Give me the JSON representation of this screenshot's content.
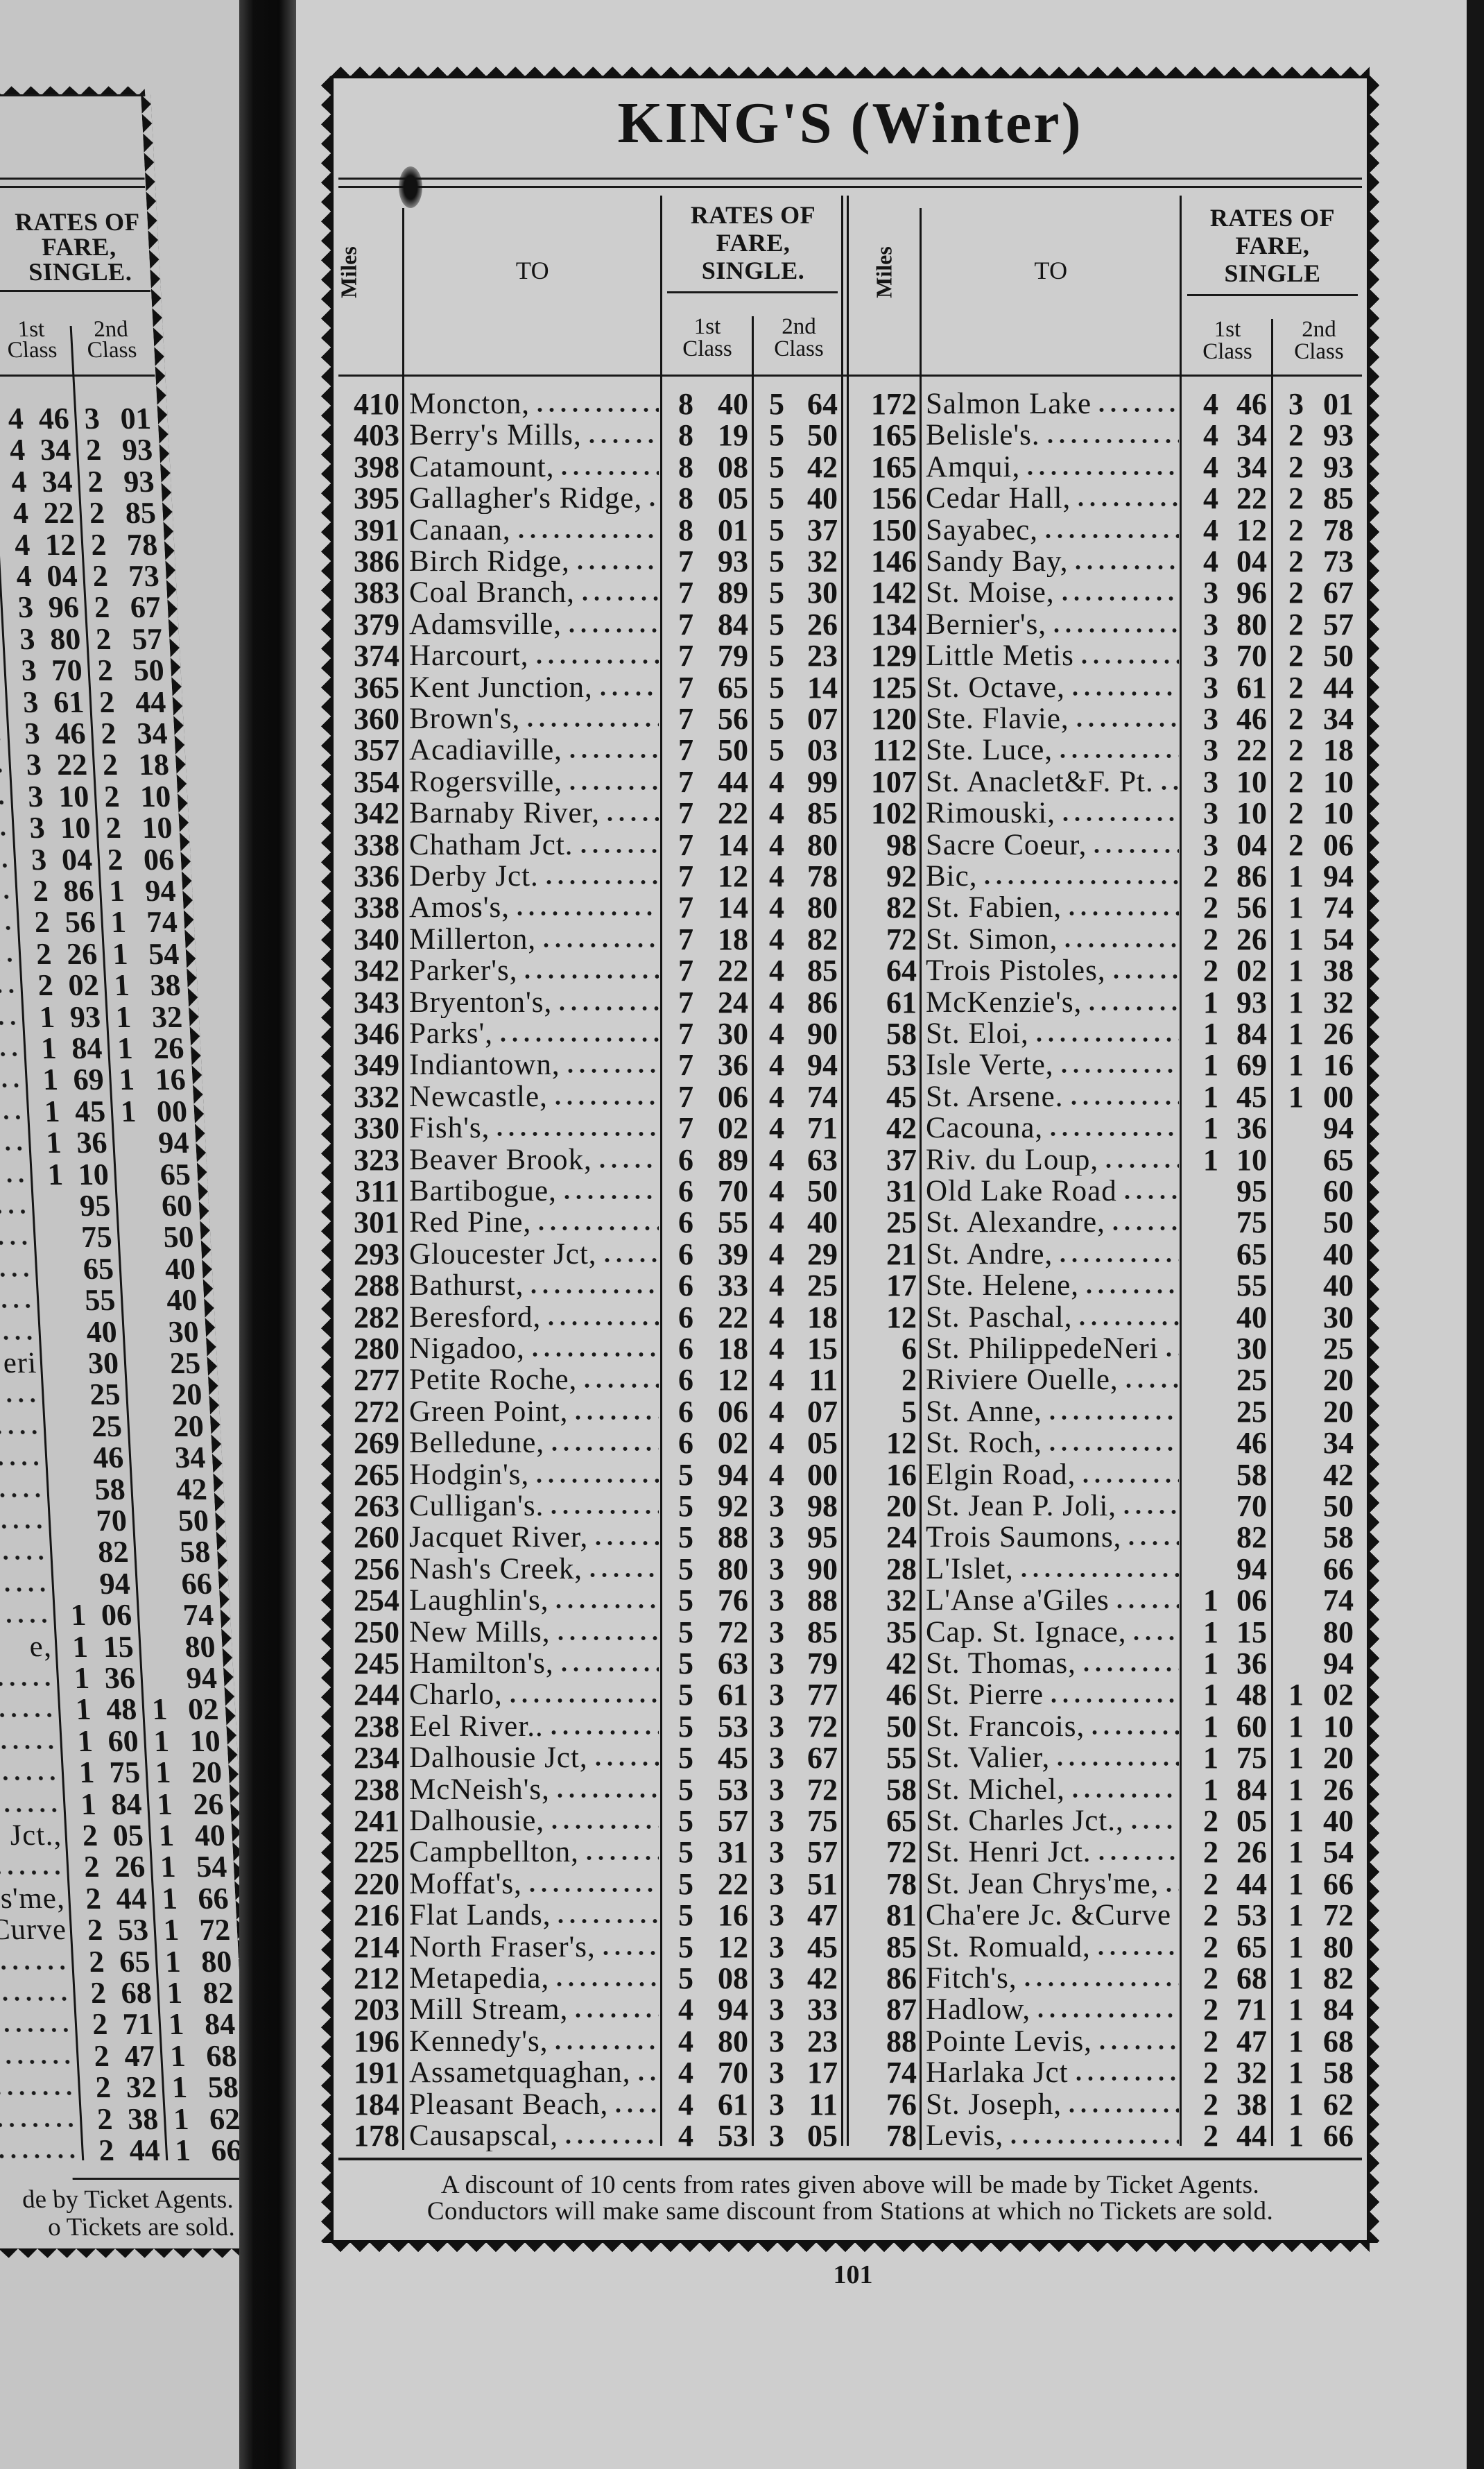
{
  "title": "KING'S (Winter)",
  "headers": {
    "left": {
      "miles": "Miles",
      "to": "TO",
      "rates": [
        "RATES OF",
        "FARE,",
        "SINGLE."
      ],
      "first": [
        "1st",
        "Class"
      ],
      "second": [
        "2nd",
        "Class"
      ]
    },
    "right": {
      "miles": "Miles",
      "to": "TO",
      "rates": [
        "RATES OF",
        "FARE,",
        "SINGLE"
      ],
      "first": [
        "1st",
        "Class"
      ],
      "second": [
        "2nd",
        "Class"
      ]
    }
  },
  "left_table": [
    [
      "410",
      "Moncton,",
      "8",
      "40",
      "5",
      "64"
    ],
    [
      "403",
      "Berry's Mills,",
      "8",
      "19",
      "5",
      "50"
    ],
    [
      "398",
      "Catamount,",
      "8",
      "08",
      "5",
      "42"
    ],
    [
      "395",
      "Gallagher's Ridge,",
      "8",
      "05",
      "5",
      "40"
    ],
    [
      "391",
      "Canaan,",
      "8",
      "01",
      "5",
      "37"
    ],
    [
      "386",
      "Birch Ridge,",
      "7",
      "93",
      "5",
      "32"
    ],
    [
      "383",
      "Coal Branch,",
      "7",
      "89",
      "5",
      "30"
    ],
    [
      "379",
      "Adamsville,",
      "7",
      "84",
      "5",
      "26"
    ],
    [
      "374",
      "Harcourt,",
      "7",
      "79",
      "5",
      "23"
    ],
    [
      "365",
      "Kent Junction,",
      "7",
      "65",
      "5",
      "14"
    ],
    [
      "360",
      "Brown's,",
      "7",
      "56",
      "5",
      "07"
    ],
    [
      "357",
      "Acadiaville,",
      "7",
      "50",
      "5",
      "03"
    ],
    [
      "354",
      "Rogersville,",
      "7",
      "44",
      "4",
      "99"
    ],
    [
      "342",
      "Barnaby River,",
      "7",
      "22",
      "4",
      "85"
    ],
    [
      "338",
      "Chatham Jct.",
      "7",
      "14",
      "4",
      "80"
    ],
    [
      "336",
      "Derby Jct.",
      "7",
      "12",
      "4",
      "78"
    ],
    [
      "338",
      "Amos's,",
      "7",
      "14",
      "4",
      "80"
    ],
    [
      "340",
      "Millerton,",
      "7",
      "18",
      "4",
      "82"
    ],
    [
      "342",
      "Parker's,",
      "7",
      "22",
      "4",
      "85"
    ],
    [
      "343",
      "Bryenton's,",
      "7",
      "24",
      "4",
      "86"
    ],
    [
      "346",
      "Parks',",
      "7",
      "30",
      "4",
      "90"
    ],
    [
      "349",
      "Indiantown,",
      "7",
      "36",
      "4",
      "94"
    ],
    [
      "332",
      "Newcastle,",
      "7",
      "06",
      "4",
      "74"
    ],
    [
      "330",
      "Fish's,",
      "7",
      "02",
      "4",
      "71"
    ],
    [
      "323",
      "Beaver Brook,",
      "6",
      "89",
      "4",
      "63"
    ],
    [
      "311",
      "Bartibogue,",
      "6",
      "70",
      "4",
      "50"
    ],
    [
      "301",
      "Red Pine,",
      "6",
      "55",
      "4",
      "40"
    ],
    [
      "293",
      "Gloucester Jct,",
      "6",
      "39",
      "4",
      "29"
    ],
    [
      "288",
      "Bathurst,",
      "6",
      "33",
      "4",
      "25"
    ],
    [
      "282",
      "Beresford,",
      "6",
      "22",
      "4",
      "18"
    ],
    [
      "280",
      "Nigadoo,",
      "6",
      "18",
      "4",
      "15"
    ],
    [
      "277",
      "Petite Roche,",
      "6",
      "12",
      "4",
      "11"
    ],
    [
      "272",
      "Green Point,",
      "6",
      "06",
      "4",
      "07"
    ],
    [
      "269",
      "Belledune,",
      "6",
      "02",
      "4",
      "05"
    ],
    [
      "265",
      "Hodgin's,",
      "5",
      "94",
      "4",
      "00"
    ],
    [
      "263",
      "Culligan's.",
      "5",
      "92",
      "3",
      "98"
    ],
    [
      "260",
      "Jacquet River,",
      "5",
      "88",
      "3",
      "95"
    ],
    [
      "256",
      "Nash's Creek,",
      "5",
      "80",
      "3",
      "90"
    ],
    [
      "254",
      "Laughlin's,",
      "5",
      "76",
      "3",
      "88"
    ],
    [
      "250",
      "New Mills,",
      "5",
      "72",
      "3",
      "85"
    ],
    [
      "245",
      "Hamilton's,",
      "5",
      "63",
      "3",
      "79"
    ],
    [
      "244",
      "Charlo,",
      "5",
      "61",
      "3",
      "77"
    ],
    [
      "238",
      "Eel River..",
      "5",
      "53",
      "3",
      "72"
    ],
    [
      "234",
      "Dalhousie Jct,",
      "5",
      "45",
      "3",
      "67"
    ],
    [
      "238",
      "McNeish's,",
      "5",
      "53",
      "3",
      "72"
    ],
    [
      "241",
      "Dalhousie,",
      "5",
      "57",
      "3",
      "75"
    ],
    [
      "225",
      "Campbellton,",
      "5",
      "31",
      "3",
      "57"
    ],
    [
      "220",
      "Moffat's,",
      "5",
      "22",
      "3",
      "51"
    ],
    [
      "216",
      "Flat Lands,",
      "5",
      "16",
      "3",
      "47"
    ],
    [
      "214",
      "North Fraser's,",
      "5",
      "12",
      "3",
      "45"
    ],
    [
      "212",
      "Metapedia,",
      "5",
      "08",
      "3",
      "42"
    ],
    [
      "203",
      "Mill Stream,",
      "4",
      "94",
      "3",
      "33"
    ],
    [
      "196",
      "Kennedy's,",
      "4",
      "80",
      "3",
      "23"
    ],
    [
      "191",
      "Assametquaghan,",
      "4",
      "70",
      "3",
      "17"
    ],
    [
      "184",
      "Pleasant Beach,",
      "4",
      "61",
      "3",
      "11"
    ],
    [
      "178",
      "Causapscal,",
      "4",
      "53",
      "3",
      "05"
    ]
  ],
  "right_table": [
    [
      "172",
      "Salmon Lake",
      "4",
      "46",
      "3",
      "01"
    ],
    [
      "165",
      "Belisle's.",
      "4",
      "34",
      "2",
      "93"
    ],
    [
      "165",
      "Amqui,",
      "4",
      "34",
      "2",
      "93"
    ],
    [
      "156",
      "Cedar Hall,",
      "4",
      "22",
      "2",
      "85"
    ],
    [
      "150",
      "Sayabec,",
      "4",
      "12",
      "2",
      "78"
    ],
    [
      "146",
      "Sandy Bay,",
      "4",
      "04",
      "2",
      "73"
    ],
    [
      "142",
      "St. Moise,",
      "3",
      "96",
      "2",
      "67"
    ],
    [
      "134",
      "Bernier's,",
      "3",
      "80",
      "2",
      "57"
    ],
    [
      "129",
      "Little Metis",
      "3",
      "70",
      "2",
      "50"
    ],
    [
      "125",
      "St. Octave,",
      "3",
      "61",
      "2",
      "44"
    ],
    [
      "120",
      "Ste. Flavie,",
      "3",
      "46",
      "2",
      "34"
    ],
    [
      "112",
      "Ste. Luce,",
      "3",
      "22",
      "2",
      "18"
    ],
    [
      "107",
      "St. Anaclet&F. Pt.",
      "3",
      "10",
      "2",
      "10"
    ],
    [
      "102",
      "Rimouski,",
      "3",
      "10",
      "2",
      "10"
    ],
    [
      "98",
      "Sacre Coeur,",
      "3",
      "04",
      "2",
      "06"
    ],
    [
      "92",
      "Bic,",
      "2",
      "86",
      "1",
      "94"
    ],
    [
      "82",
      "St. Fabien,",
      "2",
      "56",
      "1",
      "74"
    ],
    [
      "72",
      "St. Simon,",
      "2",
      "26",
      "1",
      "54"
    ],
    [
      "64",
      "Trois Pistoles,",
      "2",
      "02",
      "1",
      "38"
    ],
    [
      "61",
      "McKenzie's,",
      "1",
      "93",
      "1",
      "32"
    ],
    [
      "58",
      "St. Eloi,",
      "1",
      "84",
      "1",
      "26"
    ],
    [
      "53",
      "Isle Verte,",
      "1",
      "69",
      "1",
      "16"
    ],
    [
      "45",
      "St. Arsene.",
      "1",
      "45",
      "1",
      "00"
    ],
    [
      "42",
      "Cacouna,",
      "1",
      "36",
      "",
      "94"
    ],
    [
      "37",
      "Riv. du Loup,",
      "1",
      "10",
      "",
      "65"
    ],
    [
      "31",
      "Old Lake Road",
      "",
      "95",
      "",
      "60"
    ],
    [
      "25",
      "St. Alexandre,",
      "",
      "75",
      "",
      "50"
    ],
    [
      "21",
      "St. Andre,",
      "",
      "65",
      "",
      "40"
    ],
    [
      "17",
      "Ste. Helene,",
      "",
      "55",
      "",
      "40"
    ],
    [
      "12",
      "St. Paschal,",
      "",
      "40",
      "",
      "30"
    ],
    [
      "6",
      "St. PhilippedeNeri",
      "",
      "30",
      "",
      "25"
    ],
    [
      "2",
      "Riviere Ouelle,",
      "",
      "25",
      "",
      "20"
    ],
    [
      "5",
      "St. Anne,",
      "",
      "25",
      "",
      "20"
    ],
    [
      "12",
      "St. Roch,",
      "",
      "46",
      "",
      "34"
    ],
    [
      "16",
      "Elgin Road,",
      "",
      "58",
      "",
      "42"
    ],
    [
      "20",
      "St. Jean P. Joli,",
      "",
      "70",
      "",
      "50"
    ],
    [
      "24",
      "Trois Saumons,",
      "",
      "82",
      "",
      "58"
    ],
    [
      "28",
      "L'Islet,",
      "",
      "94",
      "",
      "66"
    ],
    [
      "32",
      "L'Anse a'Giles",
      "1",
      "06",
      "",
      "74"
    ],
    [
      "35",
      "Cap. St. Ignace,",
      "1",
      "15",
      "",
      "80"
    ],
    [
      "42",
      "St. Thomas,",
      "1",
      "36",
      "",
      "94"
    ],
    [
      "46",
      "St. Pierre",
      "1",
      "48",
      "1",
      "02"
    ],
    [
      "50",
      "St. Francois,",
      "1",
      "60",
      "1",
      "10"
    ],
    [
      "55",
      "St. Valier,",
      "1",
      "75",
      "1",
      "20"
    ],
    [
      "58",
      "St. Michel,",
      "1",
      "84",
      "1",
      "26"
    ],
    [
      "65",
      "St. Charles Jct.,",
      "2",
      "05",
      "1",
      "40"
    ],
    [
      "72",
      "St. Henri Jct.",
      "2",
      "26",
      "1",
      "54"
    ],
    [
      "78",
      "St. Jean Chrys'me,",
      "2",
      "44",
      "1",
      "66"
    ],
    [
      "81",
      "Cha'ere Jc. &Curve",
      "2",
      "53",
      "1",
      "72"
    ],
    [
      "85",
      "St. Romuald,",
      "2",
      "65",
      "1",
      "80"
    ],
    [
      "86",
      "Fitch's,",
      "2",
      "68",
      "1",
      "82"
    ],
    [
      "87",
      "Hadlow,",
      "2",
      "71",
      "1",
      "84"
    ],
    [
      "88",
      "Pointe Levis,",
      "2",
      "47",
      "1",
      "68"
    ],
    [
      "74",
      "Harlaka Jct",
      "2",
      "32",
      "1",
      "58"
    ],
    [
      "76",
      "St. Joseph,",
      "2",
      "38",
      "1",
      "62"
    ],
    [
      "78",
      "Levis,",
      "2",
      "44",
      "1",
      "66"
    ]
  ],
  "footer": [
    "A discount of 10 cents from rates given above will be made by Ticket Agents.",
    "Conductors will make same discount from Stations at which no Tickets are sold."
  ],
  "page_number": "101",
  "previous_page": {
    "rates": [
      "RATES OF",
      "FARE,",
      "SINGLE."
    ],
    "first": [
      "1st",
      "Class"
    ],
    "second": [
      "2nd",
      "Class"
    ],
    "name_fragments": {
      "30": "eri",
      "39": "e,",
      "45": "Jct.,",
      "47": "s'me,",
      "48": "Curve"
    },
    "footer": [
      "de by Ticket Agents.",
      "o Tickets are sold."
    ]
  }
}
